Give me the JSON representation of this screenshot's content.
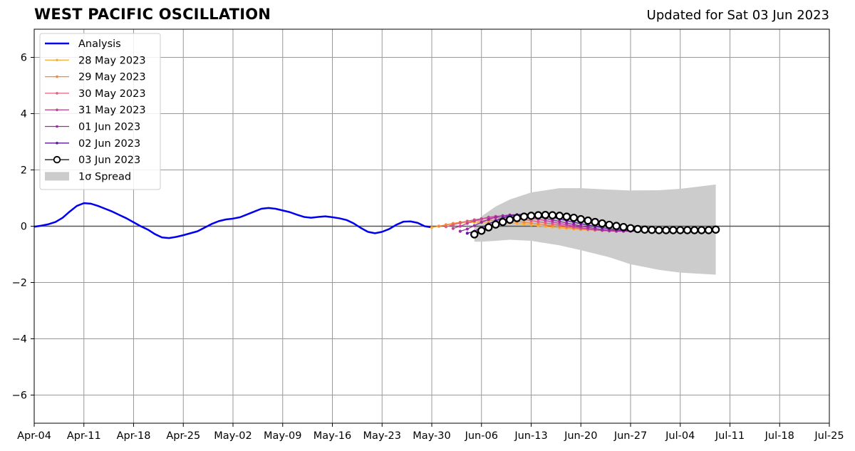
{
  "title": "WEST PACIFIC OSCILLATION",
  "subtitle": "Updated for Sat 03 Jun 2023",
  "colors": {
    "analysis": "#0000ee",
    "spread": "#cccccc",
    "grid": "#999999",
    "zero_line": "#555555"
  },
  "chart_data": {
    "type": "line",
    "title": "WEST PACIFIC OSCILLATION",
    "xlabel": "",
    "ylabel": "",
    "xlim": [
      "2023-04-04",
      "2023-07-25"
    ],
    "ylim": [
      -7,
      7
    ],
    "x_ticks": [
      "2023-04-04",
      "2023-04-11",
      "2023-04-18",
      "2023-04-25",
      "2023-05-02",
      "2023-05-09",
      "2023-05-16",
      "2023-05-23",
      "2023-05-30",
      "2023-06-06",
      "2023-06-13",
      "2023-06-20",
      "2023-06-27",
      "2023-07-04",
      "2023-07-11",
      "2023-07-18",
      "2023-07-25"
    ],
    "x_tick_labels": [
      "Apr-04",
      "Apr-11",
      "Apr-18",
      "Apr-25",
      "May-02",
      "May-09",
      "May-16",
      "May-23",
      "May-30",
      "Jun-06",
      "Jun-13",
      "Jun-20",
      "Jun-27",
      "Jul-04",
      "Jul-11",
      "Jul-18",
      "Jul-25"
    ],
    "y_ticks": [
      -6,
      -4,
      -2,
      0,
      2,
      4,
      6
    ],
    "y_tick_labels": [
      "−6",
      "−4",
      "−2",
      "0",
      "2",
      "4",
      "6"
    ],
    "grid": true,
    "legend_position": "top-left",
    "legend": [
      "Analysis",
      "28 May 2023",
      "29 May 2023",
      "30 May 2023",
      "31 May 2023",
      "01 Jun 2023",
      "02 Jun 2023",
      "03 Jun 2023",
      "1σ Spread"
    ],
    "analysis": {
      "name": "Analysis",
      "color": "#0000ee",
      "x": [
        "2023-04-04",
        "2023-04-05",
        "2023-04-06",
        "2023-04-07",
        "2023-04-08",
        "2023-04-09",
        "2023-04-10",
        "2023-04-11",
        "2023-04-12",
        "2023-04-13",
        "2023-04-14",
        "2023-04-15",
        "2023-04-16",
        "2023-04-17",
        "2023-04-18",
        "2023-04-19",
        "2023-04-20",
        "2023-04-21",
        "2023-04-22",
        "2023-04-23",
        "2023-04-24",
        "2023-04-25",
        "2023-04-26",
        "2023-04-27",
        "2023-04-28",
        "2023-04-29",
        "2023-04-30",
        "2023-05-01",
        "2023-05-02",
        "2023-05-03",
        "2023-05-04",
        "2023-05-05",
        "2023-05-06",
        "2023-05-07",
        "2023-05-08",
        "2023-05-09",
        "2023-05-10",
        "2023-05-11",
        "2023-05-12",
        "2023-05-13",
        "2023-05-14",
        "2023-05-15",
        "2023-05-16",
        "2023-05-17",
        "2023-05-18",
        "2023-05-19",
        "2023-05-20",
        "2023-05-21",
        "2023-05-22",
        "2023-05-23",
        "2023-05-24",
        "2023-05-25",
        "2023-05-26",
        "2023-05-27",
        "2023-05-28",
        "2023-05-29",
        "2023-05-30"
      ],
      "y": [
        -0.02,
        0.02,
        0.07,
        0.15,
        0.3,
        0.52,
        0.72,
        0.82,
        0.8,
        0.72,
        0.62,
        0.52,
        0.4,
        0.28,
        0.14,
        0.0,
        -0.12,
        -0.28,
        -0.4,
        -0.42,
        -0.38,
        -0.32,
        -0.25,
        -0.18,
        -0.05,
        0.08,
        0.18,
        0.24,
        0.27,
        0.32,
        0.42,
        0.52,
        0.62,
        0.65,
        0.62,
        0.56,
        0.5,
        0.41,
        0.33,
        0.3,
        0.33,
        0.35,
        0.32,
        0.28,
        0.22,
        0.1,
        -0.06,
        -0.2,
        -0.25,
        -0.2,
        -0.1,
        0.05,
        0.16,
        0.17,
        0.12,
        0.0,
        -0.04
      ]
    },
    "forecasts": [
      {
        "name": "28 May 2023",
        "color": "#f5b041",
        "start": "2023-05-30",
        "y": [
          -0.05,
          0.0,
          0.04,
          0.08,
          0.11,
          0.13,
          0.14,
          0.14,
          0.14,
          0.14,
          0.13,
          0.12,
          0.1,
          0.07,
          0.05,
          0.02,
          -0.01,
          -0.03,
          -0.06,
          -0.08,
          -0.1,
          -0.12,
          -0.13,
          -0.14,
          -0.15,
          -0.15,
          -0.15,
          -0.15,
          -0.15,
          -0.14,
          -0.14
        ]
      },
      {
        "name": "29 May 2023",
        "color": "#f0883e",
        "start": "2023-05-31",
        "y": [
          0.0,
          0.05,
          0.1,
          0.14,
          0.17,
          0.19,
          0.2,
          0.21,
          0.21,
          0.2,
          0.19,
          0.17,
          0.14,
          0.11,
          0.08,
          0.05,
          0.02,
          -0.01,
          -0.04,
          -0.07,
          -0.1,
          -0.12,
          -0.14,
          -0.15,
          -0.16,
          -0.16,
          -0.16,
          -0.16,
          -0.16,
          -0.15
        ]
      },
      {
        "name": "30 May 2023",
        "color": "#e0607e",
        "start": "2023-06-01",
        "y": [
          -0.02,
          0.05,
          0.12,
          0.18,
          0.23,
          0.27,
          0.29,
          0.3,
          0.3,
          0.29,
          0.27,
          0.24,
          0.2,
          0.16,
          0.12,
          0.08,
          0.04,
          0.0,
          -0.04,
          -0.08,
          -0.11,
          -0.13,
          -0.15,
          -0.16,
          -0.17,
          -0.17,
          -0.17,
          -0.16,
          -0.16,
          -0.15
        ]
      },
      {
        "name": "31 May 2023",
        "color": "#c0449a",
        "start": "2023-06-02",
        "y": [
          -0.08,
          0.0,
          0.1,
          0.19,
          0.26,
          0.32,
          0.35,
          0.37,
          0.37,
          0.36,
          0.33,
          0.29,
          0.25,
          0.2,
          0.15,
          0.1,
          0.05,
          0.0,
          -0.05,
          -0.09,
          -0.12,
          -0.15,
          -0.17,
          -0.18,
          -0.18,
          -0.18,
          -0.18,
          -0.17,
          -0.16,
          -0.15
        ]
      },
      {
        "name": "01 Jun 2023",
        "color": "#9a2aa0",
        "start": "2023-06-03",
        "y": [
          -0.18,
          -0.1,
          0.02,
          0.14,
          0.24,
          0.32,
          0.37,
          0.4,
          0.41,
          0.4,
          0.37,
          0.33,
          0.28,
          0.22,
          0.17,
          0.11,
          0.06,
          0.01,
          -0.04,
          -0.08,
          -0.12,
          -0.14,
          -0.16,
          -0.17,
          -0.17,
          -0.17,
          -0.16,
          -0.16,
          -0.15,
          -0.14
        ]
      },
      {
        "name": "02 Jun 2023",
        "color": "#5a1a96",
        "start": "2023-06-04",
        "y": [
          -0.25,
          -0.18,
          -0.05,
          0.08,
          0.2,
          0.3,
          0.37,
          0.41,
          0.43,
          0.43,
          0.41,
          0.37,
          0.32,
          0.26,
          0.2,
          0.14,
          0.09,
          0.04,
          -0.01,
          -0.05,
          -0.09,
          -0.12,
          -0.14,
          -0.15,
          -0.16,
          -0.16,
          -0.16,
          -0.15,
          -0.15,
          -0.14
        ]
      },
      {
        "name": "03 Jun 2023",
        "color": "#000000",
        "start": "2023-06-05",
        "y": [
          -0.29,
          -0.16,
          -0.04,
          0.06,
          0.15,
          0.23,
          0.29,
          0.34,
          0.37,
          0.39,
          0.4,
          0.39,
          0.37,
          0.34,
          0.3,
          0.25,
          0.2,
          0.15,
          0.1,
          0.05,
          0.01,
          -0.03,
          -0.07,
          -0.1,
          -0.12,
          -0.13,
          -0.14,
          -0.14,
          -0.14,
          -0.14,
          -0.14,
          -0.14,
          -0.14,
          -0.14,
          -0.12
        ]
      }
    ],
    "spread": {
      "name": "1σ Spread",
      "color": "#cccccc",
      "x": [
        "2023-06-05",
        "2023-06-06",
        "2023-06-08",
        "2023-06-10",
        "2023-06-13",
        "2023-06-17",
        "2023-06-20",
        "2023-06-24",
        "2023-06-27",
        "2023-07-01",
        "2023-07-04",
        "2023-07-09"
      ],
      "upper": [
        0.0,
        0.35,
        0.7,
        0.95,
        1.2,
        1.35,
        1.35,
        1.3,
        1.27,
        1.28,
        1.33,
        1.48
      ],
      "lower": [
        -0.55,
        -0.55,
        -0.52,
        -0.48,
        -0.52,
        -0.68,
        -0.85,
        -1.1,
        -1.35,
        -1.55,
        -1.65,
        -1.72
      ]
    }
  }
}
